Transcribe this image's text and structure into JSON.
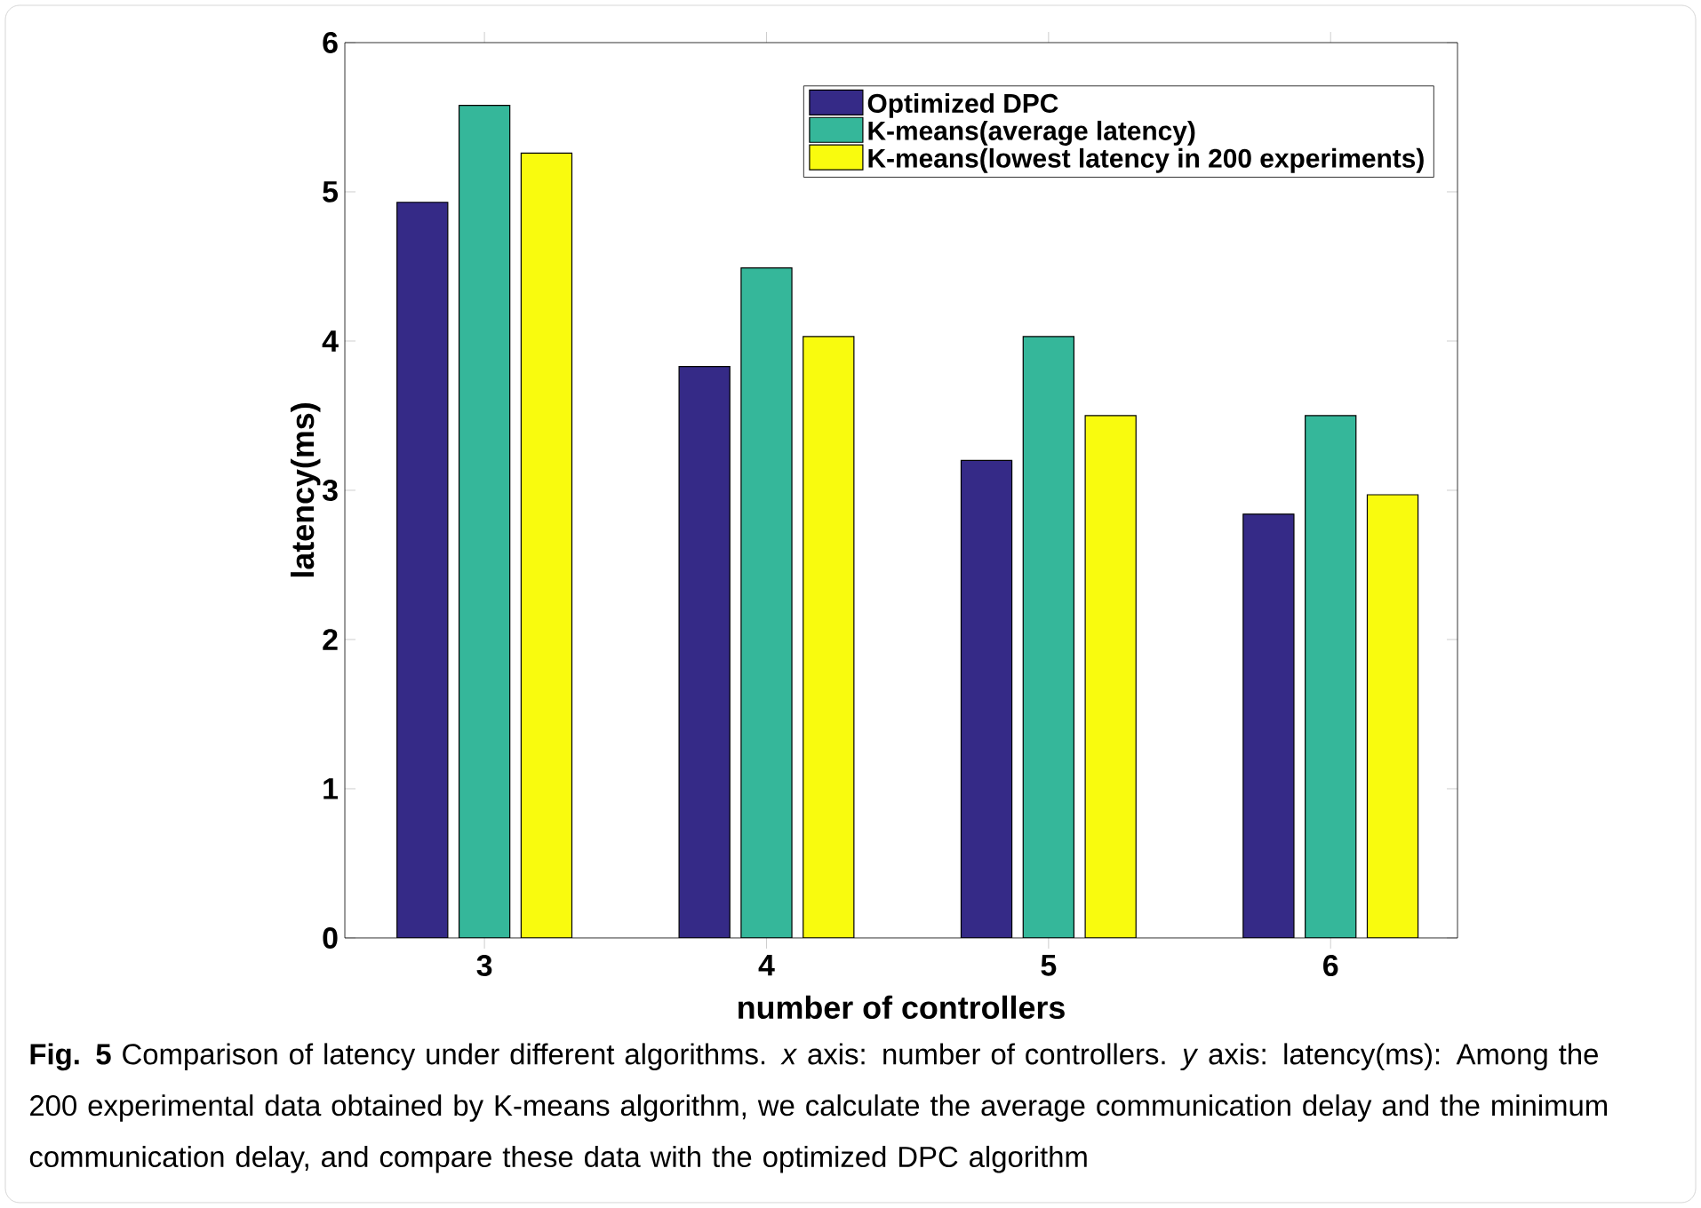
{
  "chart_data": {
    "type": "bar",
    "xlabel": "number of controllers",
    "ylabel": "latency(ms)",
    "categories": [
      "3",
      "4",
      "5",
      "6"
    ],
    "series": [
      {
        "name": "Optimized DPC",
        "color": "#352a87",
        "values": [
          4.93,
          3.83,
          3.2,
          2.84
        ]
      },
      {
        "name": "K-means(average latency)",
        "color": "#35b79a",
        "values": [
          5.58,
          4.49,
          4.03,
          3.5
        ]
      },
      {
        "name": "K-means(lowest latency in 200 experiments)",
        "color": "#f9fb0e",
        "values": [
          5.26,
          4.03,
          3.5,
          2.97
        ]
      }
    ],
    "ylim": [
      0,
      6
    ],
    "yticks": [
      0,
      1,
      2,
      3,
      4,
      5,
      6
    ],
    "grid": false,
    "legend": "top right",
    "annotations": [
      "**Fig. 5**  Comparison of latency under different algorithms. *x* axis: number of controllers. *y* axis: latency(ms): Among the 200 experimental data obtained by K-means algorithm, we calculate the average communication delay and the minimum communication delay, and compare these data with the optimized DPC algorithm"
    ]
  }
}
